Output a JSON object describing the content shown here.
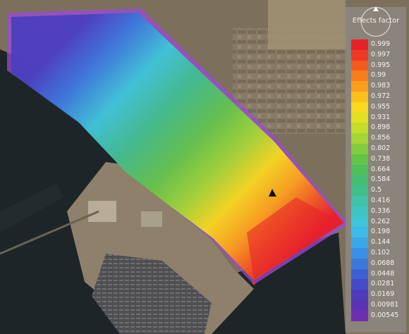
{
  "legend": {
    "title": "Effects factor",
    "entries": [
      {
        "label": "0.999",
        "color": "#e8202a"
      },
      {
        "label": "0.997",
        "color": "#ee3b24"
      },
      {
        "label": "0.995",
        "color": "#f35a1f"
      },
      {
        "label": "0.99",
        "color": "#f77d1c"
      },
      {
        "label": "0.983",
        "color": "#fb9f1a"
      },
      {
        "label": "0.972",
        "color": "#fdbf1a"
      },
      {
        "label": "0.955",
        "color": "#f8d91d"
      },
      {
        "label": "0.931",
        "color": "#e1e021"
      },
      {
        "label": "0.898",
        "color": "#c4de2a"
      },
      {
        "label": "0.856",
        "color": "#a4d634"
      },
      {
        "label": "0.802",
        "color": "#82cd3d"
      },
      {
        "label": "0.738",
        "color": "#63c447"
      },
      {
        "label": "0.664",
        "color": "#4fbf5a"
      },
      {
        "label": "0.584",
        "color": "#45bd73"
      },
      {
        "label": "0.5",
        "color": "#40bf8d"
      },
      {
        "label": "0.416",
        "color": "#3fc2a8"
      },
      {
        "label": "0.336",
        "color": "#3ec5c1"
      },
      {
        "label": "0.262",
        "color": "#3ec6d8"
      },
      {
        "label": "0.198",
        "color": "#3dbbe6"
      },
      {
        "label": "0.144",
        "color": "#3ba7e8"
      },
      {
        "label": "0.102",
        "color": "#3a90e4"
      },
      {
        "label": "0.0688",
        "color": "#3b78dc"
      },
      {
        "label": "0.0448",
        "color": "#3d60d2"
      },
      {
        "label": "0.0281",
        "color": "#434bc7"
      },
      {
        "label": "0.0169",
        "color": "#4d3cbd"
      },
      {
        "label": "0.00981",
        "color": "#5c33b5"
      },
      {
        "label": "0.00545",
        "color": "#6e2fae"
      }
    ]
  },
  "icons": {
    "compass": "north-arrow-icon",
    "source": "source-triangle-icon"
  },
  "colors": {
    "land": "#7c6f5c",
    "water": "#1e2528",
    "fringe": "#9b49d6"
  }
}
